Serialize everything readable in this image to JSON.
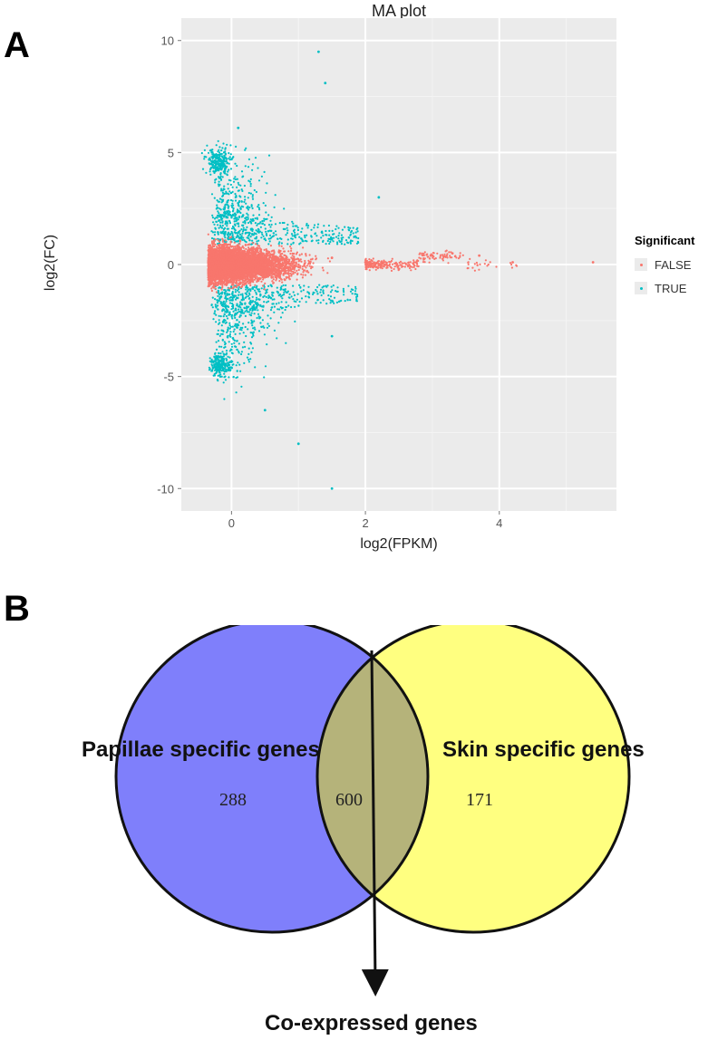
{
  "panels": {
    "a": "A",
    "b": "B"
  },
  "chart_data": [
    {
      "type": "scatter",
      "title": "MA plot",
      "xlabel": "log2(FPKM)",
      "ylabel": "log2(FC)",
      "xlim": [
        -0.75,
        5.75
      ],
      "ylim": [
        -11,
        11
      ],
      "x_ticks": [
        0,
        2,
        4
      ],
      "y_ticks": [
        -10,
        -5,
        0,
        5,
        10
      ],
      "grid": true,
      "legend": {
        "title": "Significant",
        "position": "right",
        "entries": [
          {
            "label": "FALSE",
            "color": "#f8766d"
          },
          {
            "label": "TRUE",
            "color": "#00bfc4"
          }
        ]
      },
      "series": [
        {
          "name": "FALSE",
          "color": "#f8766d",
          "points": [
            [
              -0.3,
              0.3
            ],
            [
              0.0,
              0.0
            ],
            [
              0.5,
              0.2
            ],
            [
              1.0,
              -0.1
            ],
            [
              1.5,
              0.3
            ],
            [
              2.0,
              0.1
            ],
            [
              2.5,
              -0.2
            ],
            [
              3.0,
              0.4
            ],
            [
              3.3,
              0.5
            ],
            [
              3.7,
              0.4
            ],
            [
              4.2,
              0.1
            ],
            [
              5.4,
              0.1
            ]
          ]
        },
        {
          "name": "TRUE",
          "color": "#00bfc4",
          "points": [
            [
              -0.3,
              4.5
            ],
            [
              0.0,
              4.7
            ],
            [
              -0.2,
              -4.5
            ],
            [
              0.0,
              -4.6
            ],
            [
              1.3,
              9.5
            ],
            [
              1.5,
              -10
            ],
            [
              1.4,
              8.1
            ],
            [
              0.1,
              6.1
            ],
            [
              0.5,
              -6.5
            ],
            [
              1.0,
              -8.0
            ],
            [
              2.2,
              3.0
            ],
            [
              1.5,
              -3.2
            ]
          ]
        }
      ]
    },
    {
      "type": "venn",
      "sets": [
        {
          "label": "Papillae specific genes",
          "unique": 288,
          "color": "#7f7ffb"
        },
        {
          "label": "Skin specific genes",
          "unique": 171,
          "color": "#ffff80"
        }
      ],
      "intersection": {
        "value": 600,
        "color": "#b5b37a"
      },
      "annotation": "Co-expressed genes"
    }
  ]
}
